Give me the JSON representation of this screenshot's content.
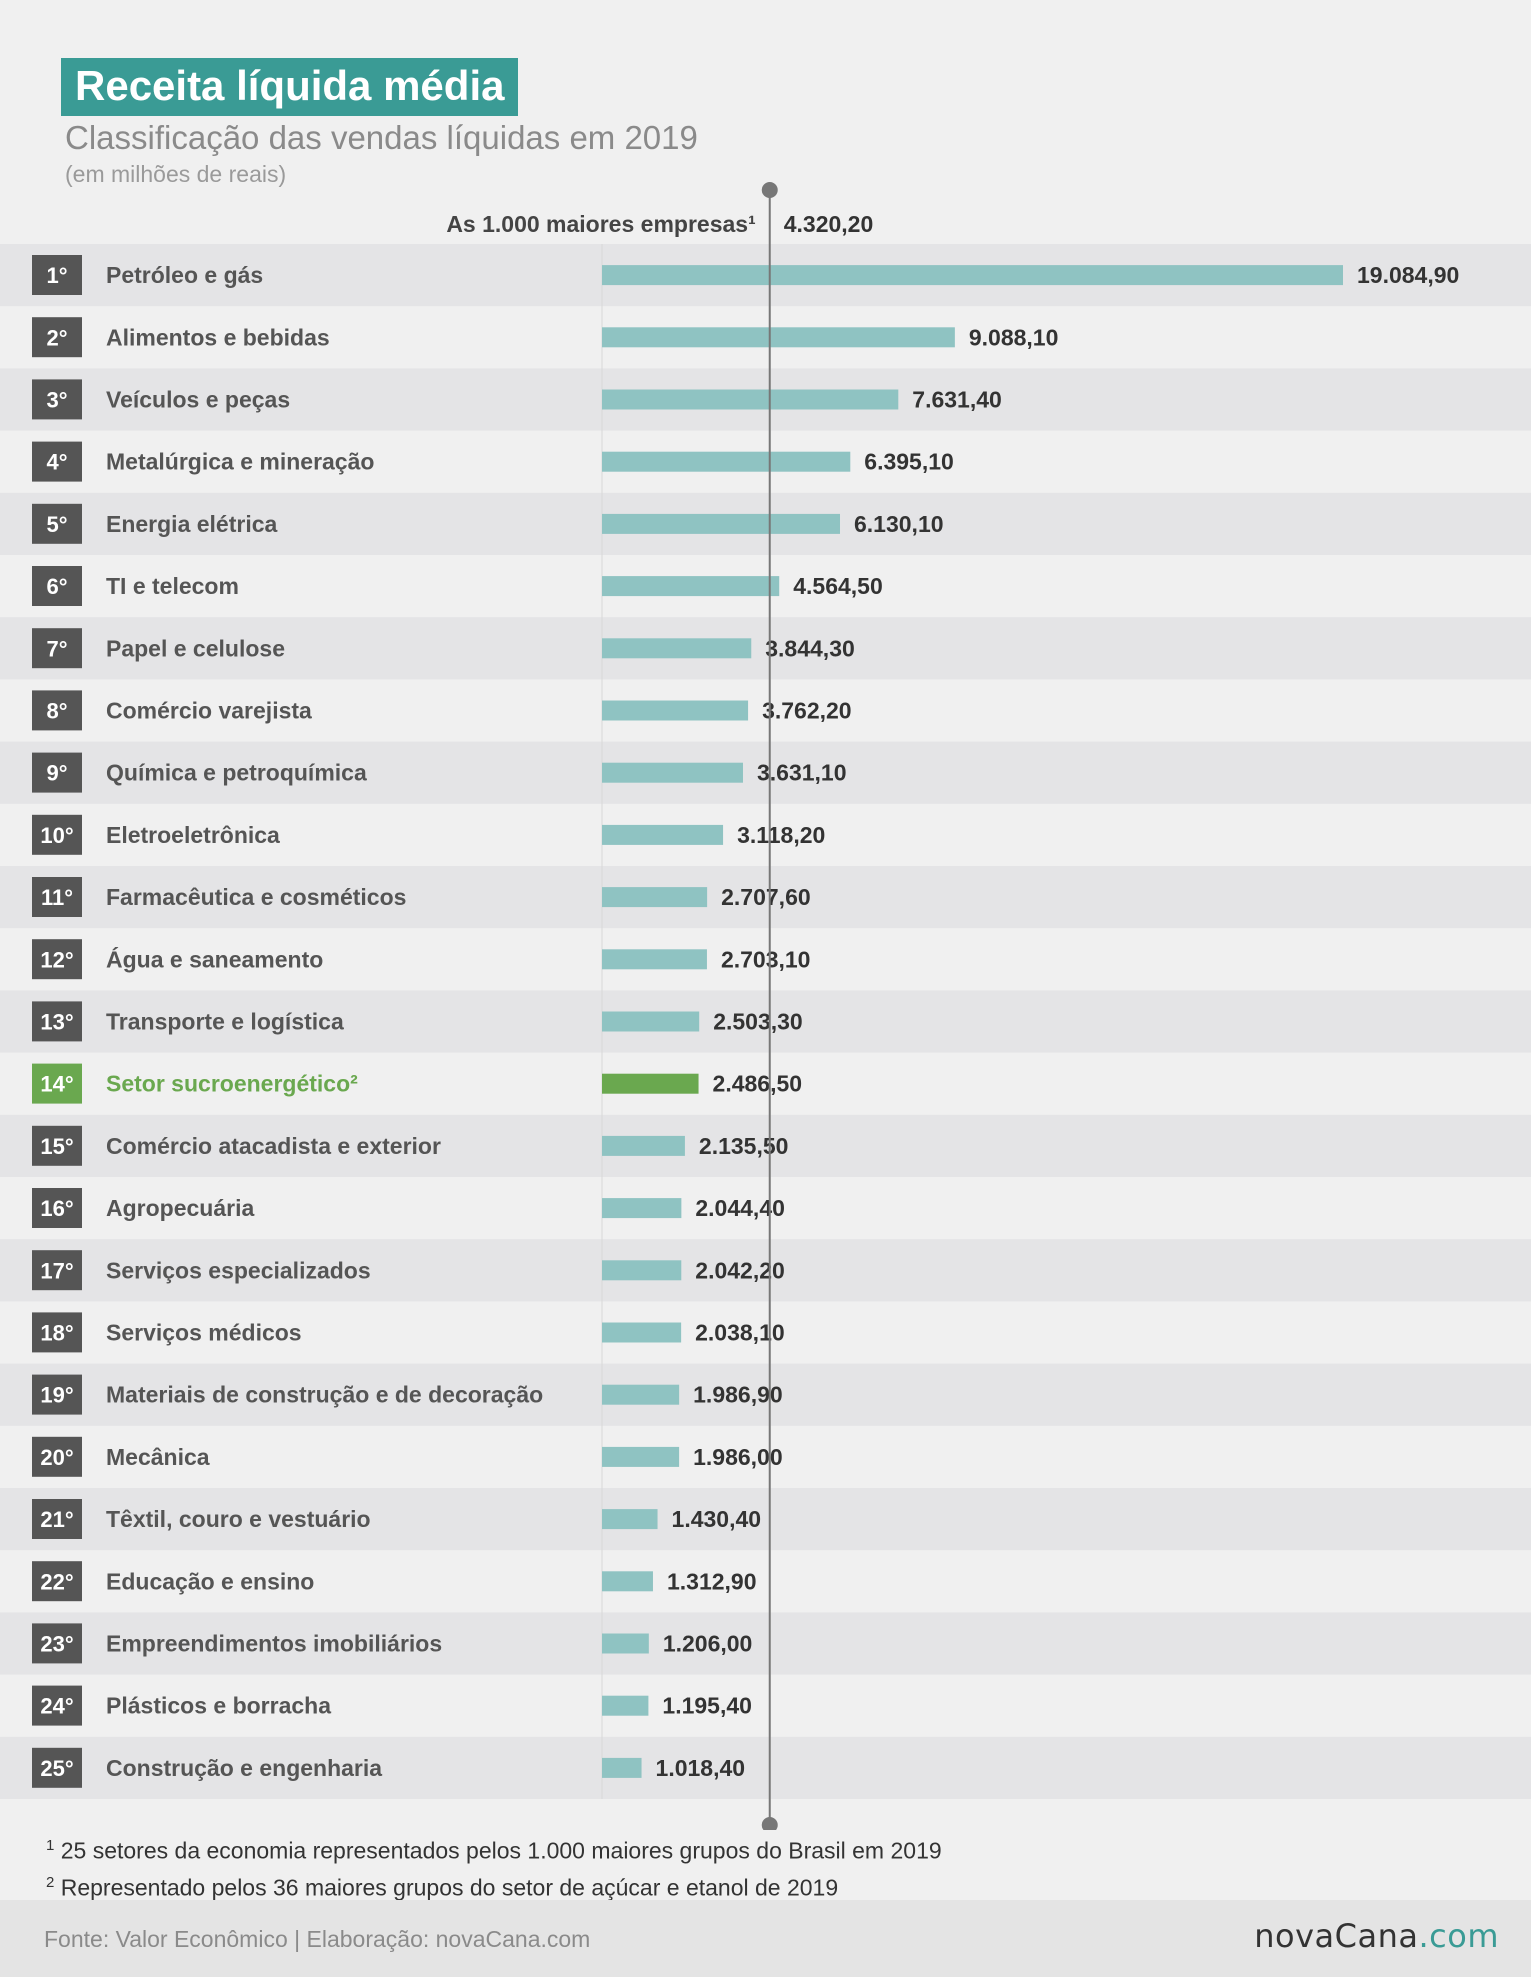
{
  "header": {
    "title": "Receita líquida média",
    "subtitle": "Classificação das vendas líquidas em 2019",
    "unit_note": "(em milhões de reais)"
  },
  "reference": {
    "label": "As 1.000 maiores empresas¹",
    "value_label": "4.320,20",
    "value": 4320.2
  },
  "colors": {
    "bar": "#8fc3c2",
    "highlight": "#6aa84f",
    "rank_box": "#555555",
    "row_alt": "#e4e4e6",
    "reference_line": "#777777",
    "accent": "#3a9b95"
  },
  "chart_data": {
    "type": "bar",
    "orientation": "horizontal",
    "title": "Receita líquida média",
    "subtitle": "Classificação das vendas líquidas em 2019",
    "unit": "(em milhões de reais)",
    "highlight_index": 13,
    "categories": [
      "Petróleo e gás",
      "Alimentos e bebidas",
      "Veículos e peças",
      "Metalúrgica e mineração",
      "Energia elétrica",
      "TI e telecom",
      "Papel e celulose",
      "Comércio varejista",
      "Química e petroquímica",
      "Eletroeletrônica",
      "Farmacêutica e cosméticos",
      "Água e saneamento",
      "Transporte e logística",
      "Setor sucroenergético²",
      "Comércio atacadista e exterior",
      "Agropecuária",
      "Serviços especializados",
      "Serviços médicos",
      "Materiais de construção e de decoração",
      "Mecânica",
      "Têxtil, couro e vestuário",
      "Educação e ensino",
      "Empreendimentos imobiliários",
      "Plásticos e borracha",
      "Construção e engenharia"
    ],
    "ranks": [
      "1°",
      "2°",
      "3°",
      "4°",
      "5°",
      "6°",
      "7°",
      "8°",
      "9°",
      "10°",
      "11°",
      "12°",
      "13°",
      "14°",
      "15°",
      "16°",
      "17°",
      "18°",
      "19°",
      "20°",
      "21°",
      "22°",
      "23°",
      "24°",
      "25°"
    ],
    "values": [
      19084.9,
      9088.1,
      7631.4,
      6395.1,
      6130.1,
      4564.5,
      3844.3,
      3762.2,
      3631.1,
      3118.2,
      2707.6,
      2703.1,
      2503.3,
      2486.5,
      2135.5,
      2044.4,
      2042.2,
      2038.1,
      1986.9,
      1986.0,
      1430.4,
      1312.9,
      1206.0,
      1195.4,
      1018.4
    ],
    "value_labels": [
      "19.084,90",
      "9.088,10",
      "7.631,40",
      "6.395,10",
      "6.130,10",
      "4.564,50",
      "3.844,30",
      "3.762,20",
      "3.631,10",
      "3.118,20",
      "2.707,60",
      "2.703,10",
      "2.503,30",
      "2.486,50",
      "2.135,50",
      "2.044,40",
      "2.042,20",
      "2.038,10",
      "1.986,90",
      "1.986,00",
      "1.430,40",
      "1.312,90",
      "1.206,00",
      "1.195,40",
      "1.018,40"
    ],
    "xlim": [
      0,
      19084.9
    ]
  },
  "footnotes": {
    "note1_mark": "1",
    "note1": "25 setores da economia representados pelos 1.000 maiores grupos do Brasil em 2019",
    "note2_mark": "2",
    "note2": "Representado pelos 36 maiores grupos do setor de açúcar e etanol de 2019"
  },
  "footer": {
    "source": "Fonte: Valor Econômico | Elaboração: novaCana.com",
    "logo_name": "novaCana",
    "logo_domain": ".com"
  }
}
